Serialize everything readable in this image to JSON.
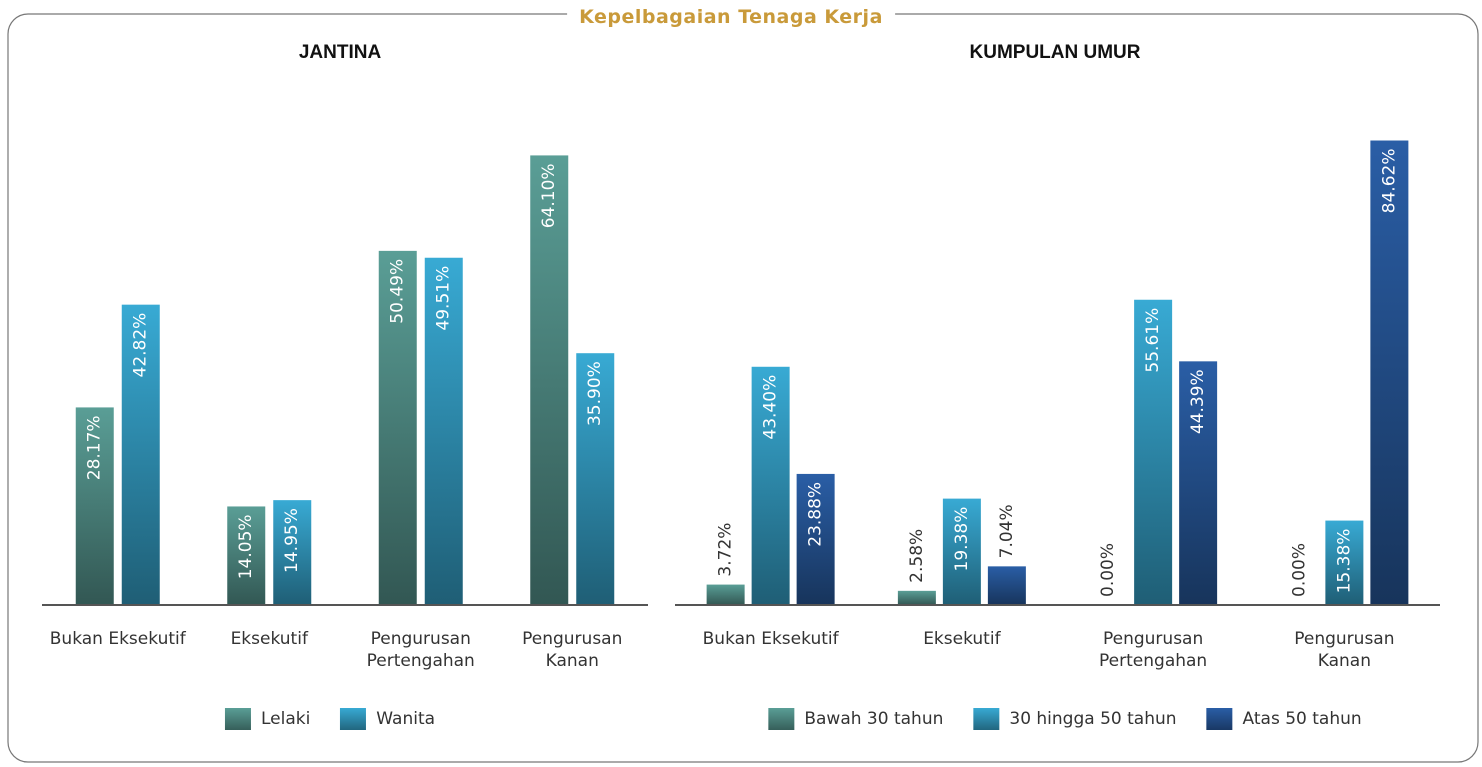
{
  "title": "Kepelbagaian Tenaga Kerja",
  "chart_data": [
    {
      "type": "bar",
      "title": "JANTINA",
      "categories": [
        "Bukan Eksekutif",
        "Eksekutif",
        "Pengurusan\nPertengahan",
        "Pengurusan\nKanan"
      ],
      "series": [
        {
          "name": "Lelaki",
          "color": "#5a9e96",
          "values": [
            28.17,
            14.05,
            50.49,
            64.1
          ],
          "value_labels": [
            "28.17%",
            "14.05%",
            "50.49%",
            "64.10%"
          ]
        },
        {
          "name": "Wanita",
          "color": "#38aad4",
          "values": [
            42.82,
            14.95,
            49.51,
            35.9
          ],
          "value_labels": [
            "42.82%",
            "14.95%",
            "49.51%",
            "35.90%"
          ]
        }
      ],
      "ylim": [
        0,
        72
      ]
    },
    {
      "type": "bar",
      "title": "KUMPULAN UMUR",
      "categories": [
        "Bukan Eksekutif",
        "Eksekutif",
        "Pengurusan\nPertengahan",
        "Pengurusan\nKanan"
      ],
      "series": [
        {
          "name": "Bawah 30 tahun",
          "color": "#5a9e96",
          "values": [
            3.72,
            2.58,
            0.0,
            0.0
          ],
          "value_labels": [
            "3.72%",
            "2.58%",
            "0.00%",
            "0.00%"
          ]
        },
        {
          "name": "30 hingga 50 tahun",
          "color": "#38aad4",
          "values": [
            43.4,
            19.38,
            55.61,
            15.38
          ],
          "value_labels": [
            "43.40%",
            "19.38%",
            "55.61%",
            "15.38%"
          ]
        },
        {
          "name": "Atas 50 tahun",
          "color": "#2a5ea6",
          "values": [
            23.88,
            7.04,
            44.39,
            84.62
          ],
          "value_labels": [
            "23.88%",
            "7.04%",
            "44.39%",
            "84.62%"
          ]
        }
      ],
      "ylim": [
        0,
        92
      ]
    }
  ]
}
